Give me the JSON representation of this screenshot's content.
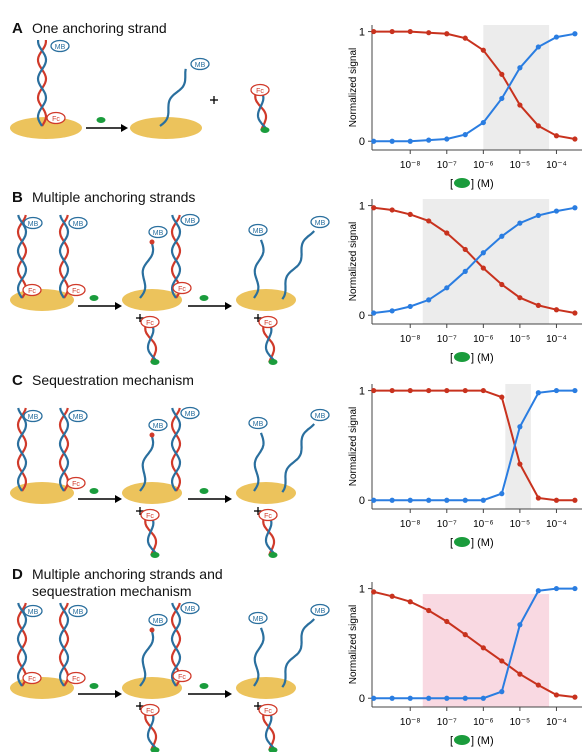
{
  "labels": {
    "mb": "MB",
    "fc": "Fc"
  },
  "chart_data": [
    {
      "type": "line",
      "panel_label": "A",
      "title": "One anchoring strand",
      "ylabel": "Normalized signal",
      "xlabel": [
        "[",
        "] (M)"
      ],
      "xscale": "log",
      "x": [
        1e-09,
        3.2e-09,
        1e-08,
        3.2e-08,
        1e-07,
        3.2e-07,
        1e-06,
        3.2e-06,
        1e-05,
        3.2e-05,
        0.0001,
        0.00032
      ],
      "series": [
        {
          "color": "#c8321e",
          "values": [
            1.0,
            1.0,
            1.0,
            0.99,
            0.98,
            0.94,
            0.83,
            0.61,
            0.33,
            0.14,
            0.05,
            0.02
          ]
        },
        {
          "color": "#2a7de1",
          "values": [
            0.0,
            0.0,
            0.0,
            0.01,
            0.02,
            0.06,
            0.17,
            0.39,
            0.67,
            0.86,
            0.95,
            0.98
          ]
        }
      ],
      "shade": {
        "x": [
          1e-06,
          6.3e-05
        ],
        "color": "#ececec"
      },
      "xlim": [
        9e-10,
        0.0005
      ],
      "ylim": [
        -0.08,
        1.06
      ],
      "xticks": [
        {
          "value": 1e-08,
          "label": "10⁻⁸"
        },
        {
          "value": 1e-07,
          "label": "10⁻⁷"
        },
        {
          "value": 1e-06,
          "label": "10⁻⁶"
        },
        {
          "value": 1e-05,
          "label": "10⁻⁵"
        },
        {
          "value": 0.0001,
          "label": "10⁻⁴"
        }
      ],
      "yticks": [
        0,
        1
      ]
    },
    {
      "type": "line",
      "panel_label": "B",
      "title": "Multiple anchoring strands",
      "ylabel": "Normalized signal",
      "xlabel": [
        "[",
        "] (M)"
      ],
      "xscale": "log",
      "x": [
        1e-09,
        3.2e-09,
        1e-08,
        3.2e-08,
        1e-07,
        3.2e-07,
        1e-06,
        3.2e-06,
        1e-05,
        3.2e-05,
        0.0001,
        0.00032
      ],
      "series": [
        {
          "color": "#c8321e",
          "values": [
            0.98,
            0.96,
            0.92,
            0.86,
            0.75,
            0.6,
            0.43,
            0.28,
            0.16,
            0.09,
            0.05,
            0.02
          ]
        },
        {
          "color": "#2a7de1",
          "values": [
            0.02,
            0.04,
            0.08,
            0.14,
            0.25,
            0.4,
            0.57,
            0.72,
            0.84,
            0.91,
            0.95,
            0.98
          ]
        }
      ],
      "shade": {
        "x": [
          2.2e-08,
          6.3e-05
        ],
        "color": "#ececec"
      },
      "xlim": [
        9e-10,
        0.0005
      ],
      "ylim": [
        -0.08,
        1.06
      ],
      "xticks": [
        {
          "value": 1e-08,
          "label": "10⁻⁸"
        },
        {
          "value": 1e-07,
          "label": "10⁻⁷"
        },
        {
          "value": 1e-06,
          "label": "10⁻⁶"
        },
        {
          "value": 1e-05,
          "label": "10⁻⁵"
        },
        {
          "value": 0.0001,
          "label": "10⁻⁴"
        }
      ],
      "yticks": [
        0,
        1
      ]
    },
    {
      "type": "line",
      "panel_label": "C",
      "title": "Sequestration mechanism",
      "ylabel": "Normalized signal",
      "xlabel": [
        "[",
        "] (M)"
      ],
      "xscale": "log",
      "x": [
        1e-09,
        3.2e-09,
        1e-08,
        3.2e-08,
        1e-07,
        3.2e-07,
        1e-06,
        3.2e-06,
        1e-05,
        3.2e-05,
        0.0001,
        0.00032
      ],
      "series": [
        {
          "color": "#c8321e",
          "values": [
            1.0,
            1.0,
            1.0,
            1.0,
            1.0,
            1.0,
            1.0,
            0.94,
            0.33,
            0.02,
            0.0,
            0.0
          ]
        },
        {
          "color": "#2a7de1",
          "values": [
            0.0,
            0.0,
            0.0,
            0.0,
            0.0,
            0.0,
            0.0,
            0.06,
            0.67,
            0.98,
            1.0,
            1.0
          ]
        }
      ],
      "shade": {
        "x": [
          4e-06,
          2e-05
        ],
        "color": "#ececec"
      },
      "xlim": [
        9e-10,
        0.0005
      ],
      "ylim": [
        -0.08,
        1.06
      ],
      "xticks": [
        {
          "value": 1e-08,
          "label": "10⁻⁸"
        },
        {
          "value": 1e-07,
          "label": "10⁻⁷"
        },
        {
          "value": 1e-06,
          "label": "10⁻⁶"
        },
        {
          "value": 1e-05,
          "label": "10⁻⁵"
        },
        {
          "value": 0.0001,
          "label": "10⁻⁴"
        }
      ],
      "yticks": [
        0,
        1
      ]
    },
    {
      "type": "line",
      "panel_label": "D",
      "title": "Multiple anchoring strands and sequestration mechanism",
      "ylabel": "Normalized signal",
      "xlabel": [
        "[",
        "] (M)"
      ],
      "xscale": "log",
      "x": [
        1e-09,
        3.2e-09,
        1e-08,
        3.2e-08,
        1e-07,
        3.2e-07,
        1e-06,
        3.2e-06,
        1e-05,
        3.2e-05,
        0.0001,
        0.00032
      ],
      "series": [
        {
          "color": "#c8321e",
          "values": [
            0.97,
            0.93,
            0.88,
            0.8,
            0.7,
            0.58,
            0.46,
            0.34,
            0.22,
            0.12,
            0.03,
            0.01
          ]
        },
        {
          "color": "#2a7de1",
          "values": [
            0.0,
            0.0,
            0.0,
            0.0,
            0.0,
            0.0,
            0.0,
            0.06,
            0.67,
            0.98,
            1.0,
            1.0
          ]
        }
      ],
      "shade": {
        "x": [
          2.2e-08,
          6.3e-05
        ],
        "ytop": 0.95,
        "color": "#f9d9e2"
      },
      "xlim": [
        9e-10,
        0.0005
      ],
      "ylim": [
        -0.08,
        1.06
      ],
      "xticks": [
        {
          "value": 1e-08,
          "label": "10⁻⁸"
        },
        {
          "value": 1e-07,
          "label": "10⁻⁷"
        },
        {
          "value": 1e-06,
          "label": "10⁻⁶"
        },
        {
          "value": 1e-05,
          "label": "10⁻⁵"
        },
        {
          "value": 0.0001,
          "label": "10⁻⁴"
        }
      ],
      "yticks": [
        0,
        1
      ]
    }
  ]
}
